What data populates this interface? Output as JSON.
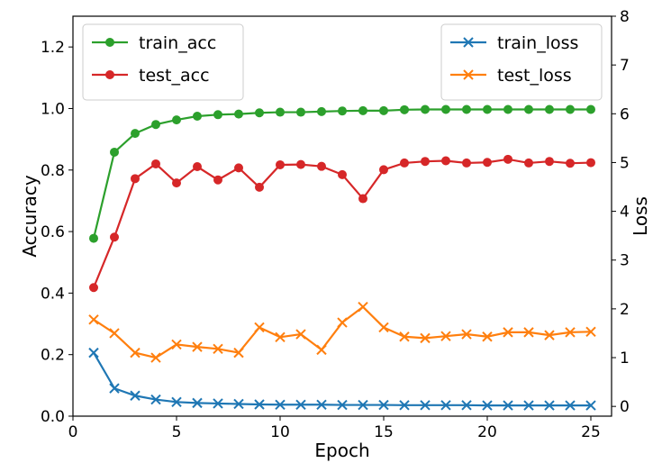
{
  "chart_data": {
    "type": "line",
    "xlabel": "Epoch",
    "ylabel_left": "Accuracy",
    "ylabel_right": "Loss",
    "xlim": [
      0,
      26
    ],
    "ylim_left": [
      0,
      1.3
    ],
    "ylim_right": [
      -0.2,
      8
    ],
    "x_ticks": [
      0,
      5,
      10,
      15,
      20,
      25
    ],
    "y_ticks_left": [
      0.0,
      0.2,
      0.4,
      0.6,
      0.8,
      1.0,
      1.2
    ],
    "y_ticks_right": [
      0,
      1,
      2,
      3,
      4,
      5,
      6,
      7,
      8
    ],
    "grid": false,
    "x": [
      1,
      2,
      3,
      4,
      5,
      6,
      7,
      8,
      9,
      10,
      11,
      12,
      13,
      14,
      15,
      16,
      17,
      18,
      19,
      20,
      21,
      22,
      23,
      24,
      25
    ],
    "series": [
      {
        "name": "train_acc",
        "axis": "left",
        "marker": "circle",
        "color": "#2ca02c",
        "values": [
          0.578,
          0.858,
          0.919,
          0.948,
          0.963,
          0.975,
          0.98,
          0.982,
          0.986,
          0.988,
          0.988,
          0.99,
          0.992,
          0.993,
          0.993,
          0.996,
          0.997,
          0.997,
          0.997,
          0.997,
          0.997,
          0.997,
          0.997,
          0.997,
          0.997
        ]
      },
      {
        "name": "test_acc",
        "axis": "left",
        "marker": "circle",
        "color": "#d62728",
        "values": [
          0.418,
          0.582,
          0.772,
          0.82,
          0.758,
          0.811,
          0.768,
          0.807,
          0.744,
          0.817,
          0.818,
          0.812,
          0.785,
          0.707,
          0.801,
          0.823,
          0.828,
          0.83,
          0.823,
          0.825,
          0.835,
          0.823,
          0.828,
          0.822,
          0.824
        ]
      },
      {
        "name": "train_loss",
        "axis": "right",
        "marker": "x",
        "color": "#1f77b4",
        "values": [
          1.1,
          0.37,
          0.22,
          0.14,
          0.09,
          0.07,
          0.06,
          0.05,
          0.04,
          0.035,
          0.035,
          0.035,
          0.03,
          0.03,
          0.03,
          0.025,
          0.025,
          0.025,
          0.025,
          0.02,
          0.02,
          0.02,
          0.02,
          0.02,
          0.02
        ]
      },
      {
        "name": "test_loss",
        "axis": "right",
        "marker": "x",
        "color": "#ff7f0e",
        "values": [
          1.78,
          1.5,
          1.1,
          1.0,
          1.27,
          1.22,
          1.18,
          1.1,
          1.62,
          1.42,
          1.48,
          1.16,
          1.72,
          2.04,
          1.62,
          1.43,
          1.4,
          1.44,
          1.48,
          1.43,
          1.52,
          1.52,
          1.46,
          1.52,
          1.53
        ]
      }
    ],
    "legends": [
      {
        "position": "upper-left",
        "entries": [
          "train_acc",
          "test_acc"
        ]
      },
      {
        "position": "upper-right",
        "entries": [
          "train_loss",
          "test_loss"
        ]
      }
    ]
  }
}
